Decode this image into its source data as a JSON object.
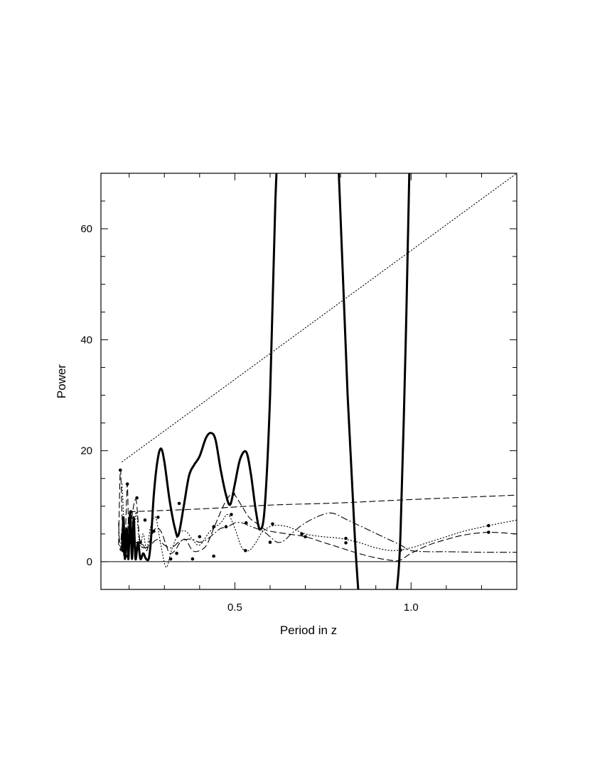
{
  "chart_data": {
    "type": "line",
    "title": "",
    "xlabel": "Period in z",
    "ylabel": "Power",
    "xlim": [
      0.12,
      1.3
    ],
    "ylim": [
      -5,
      70
    ],
    "x_ticks": [
      0.5,
      1.0
    ],
    "x_tick_labels": [
      "0.5",
      "1.0"
    ],
    "x_minor_ticks": [
      0.2,
      0.3,
      0.4,
      0.6,
      0.7,
      0.8,
      0.9,
      1.1,
      1.2
    ],
    "y_ticks": [
      0,
      20,
      40,
      60
    ],
    "y_tick_labels": [
      "0",
      "20",
      "40",
      "60"
    ],
    "y_minor_ticks": [
      -5,
      5,
      10,
      15,
      25,
      30,
      35,
      45,
      50,
      55,
      65,
      70
    ],
    "zero_line": true,
    "grid": false,
    "series": [
      {
        "style": "thick-solid",
        "points": [
          [
            0.18,
            2
          ],
          [
            0.184,
            8
          ],
          [
            0.188,
            0.5
          ],
          [
            0.193,
            6
          ],
          [
            0.198,
            0.5
          ],
          [
            0.203,
            9
          ],
          [
            0.208,
            0.5
          ],
          [
            0.213,
            8
          ],
          [
            0.218,
            0.5
          ],
          [
            0.225,
            3.5
          ],
          [
            0.232,
            0.5
          ],
          [
            0.24,
            1.5
          ],
          [
            0.248,
            0.5
          ],
          [
            0.256,
            0.6
          ],
          [
            0.262,
            4
          ],
          [
            0.27,
            12
          ],
          [
            0.28,
            18
          ],
          [
            0.29,
            20.4
          ],
          [
            0.3,
            18
          ],
          [
            0.315,
            11
          ],
          [
            0.33,
            6
          ],
          [
            0.34,
            4.8
          ],
          [
            0.355,
            10
          ],
          [
            0.37,
            15.5
          ],
          [
            0.385,
            17.5
          ],
          [
            0.4,
            19
          ],
          [
            0.418,
            22.3
          ],
          [
            0.432,
            23.2
          ],
          [
            0.445,
            22
          ],
          [
            0.46,
            16.5
          ],
          [
            0.475,
            12
          ],
          [
            0.487,
            10.3
          ],
          [
            0.5,
            14
          ],
          [
            0.515,
            18.5
          ],
          [
            0.532,
            19.8
          ],
          [
            0.545,
            16
          ],
          [
            0.56,
            9
          ],
          [
            0.572,
            5.8
          ],
          [
            0.585,
            10
          ],
          [
            0.6,
            30
          ],
          [
            0.615,
            65
          ],
          [
            0.63,
            85
          ]
        ]
      },
      {
        "style": "thick-solid",
        "points": [
          [
            0.78,
            85
          ],
          [
            0.795,
            70
          ],
          [
            0.82,
            30
          ],
          [
            0.84,
            5
          ],
          [
            0.85,
            -5
          ]
        ]
      },
      {
        "style": "thick-solid",
        "points": [
          [
            0.96,
            -5
          ],
          [
            0.97,
            5
          ],
          [
            0.985,
            40
          ],
          [
            0.995,
            70
          ],
          [
            1.005,
            85
          ]
        ]
      },
      {
        "style": "dotted",
        "points": [
          [
            0.18,
            18
          ],
          [
            1.3,
            70
          ]
        ]
      },
      {
        "style": "dotted",
        "points": [
          [
            0.18,
            14
          ],
          [
            0.19,
            3
          ],
          [
            0.2,
            8
          ],
          [
            0.21,
            2
          ],
          [
            0.22,
            9
          ],
          [
            0.23,
            3
          ],
          [
            0.24,
            5
          ],
          [
            0.25,
            2
          ],
          [
            0.26,
            6
          ],
          [
            0.275,
            8
          ],
          [
            0.29,
            3
          ],
          [
            0.305,
            -1
          ],
          [
            0.32,
            2
          ],
          [
            0.34,
            5
          ],
          [
            0.36,
            5.5
          ],
          [
            0.38,
            4
          ],
          [
            0.4,
            3
          ],
          [
            0.43,
            5.5
          ],
          [
            0.46,
            7
          ],
          [
            0.48,
            8.5
          ],
          [
            0.5,
            6
          ],
          [
            0.52,
            2.5
          ],
          [
            0.54,
            2
          ],
          [
            0.56,
            3.5
          ],
          [
            0.58,
            5.5
          ],
          [
            0.61,
            6.5
          ],
          [
            0.65,
            6.3
          ],
          [
            0.7,
            5
          ],
          [
            0.75,
            4.5
          ],
          [
            0.8,
            4.2
          ],
          [
            0.85,
            3.5
          ],
          [
            0.9,
            2.5
          ],
          [
            0.95,
            2
          ],
          [
            1.0,
            2.5
          ],
          [
            1.05,
            3.5
          ],
          [
            1.1,
            4.5
          ],
          [
            1.15,
            5.5
          ],
          [
            1.22,
            6.5
          ],
          [
            1.3,
            7.5
          ]
        ]
      },
      {
        "style": "dashed",
        "points": [
          [
            0.17,
            3
          ],
          [
            0.175,
            16.5
          ],
          [
            0.18,
            8
          ],
          [
            0.185,
            1
          ],
          [
            0.19,
            6
          ],
          [
            0.195,
            14
          ],
          [
            0.2,
            3
          ],
          [
            0.21,
            9
          ],
          [
            0.22,
            11
          ],
          [
            0.23,
            4
          ],
          [
            0.24,
            3
          ],
          [
            0.25,
            2
          ],
          [
            0.26,
            4
          ],
          [
            0.275,
            6
          ],
          [
            0.29,
            5.5
          ],
          [
            0.305,
            3
          ],
          [
            0.315,
            1.5
          ],
          [
            0.33,
            2
          ],
          [
            0.345,
            3.5
          ],
          [
            0.36,
            4
          ],
          [
            0.38,
            2
          ],
          [
            0.4,
            2
          ],
          [
            0.42,
            3
          ],
          [
            0.44,
            6
          ],
          [
            0.46,
            9
          ],
          [
            0.475,
            11
          ],
          [
            0.49,
            12.2
          ],
          [
            0.5,
            12
          ],
          [
            0.52,
            10
          ],
          [
            0.54,
            8
          ],
          [
            0.56,
            7
          ],
          [
            0.58,
            6
          ],
          [
            0.6,
            5.5
          ],
          [
            0.65,
            5
          ],
          [
            0.7,
            4.5
          ],
          [
            0.75,
            3.5
          ],
          [
            0.8,
            2.5
          ],
          [
            0.85,
            1.5
          ],
          [
            0.9,
            0.7
          ],
          [
            0.95,
            0.2
          ],
          [
            0.97,
            0.3
          ],
          [
            1.0,
            1.5
          ],
          [
            1.05,
            3
          ],
          [
            1.1,
            4
          ],
          [
            1.15,
            4.8
          ],
          [
            1.22,
            5.3
          ],
          [
            1.3,
            5
          ]
        ]
      },
      {
        "style": "dashed",
        "points": [
          [
            0.2,
            9
          ],
          [
            0.4,
            9.5
          ],
          [
            0.6,
            10.2
          ],
          [
            0.8,
            10.6
          ],
          [
            1.0,
            11.2
          ],
          [
            1.3,
            12
          ]
        ]
      },
      {
        "style": "dash-dot",
        "points": [
          [
            0.17,
            7
          ],
          [
            0.175,
            2
          ],
          [
            0.18,
            6
          ],
          [
            0.19,
            3
          ],
          [
            0.2,
            4
          ],
          [
            0.21,
            2
          ],
          [
            0.22,
            3.5
          ],
          [
            0.24,
            2.5
          ],
          [
            0.26,
            3
          ],
          [
            0.28,
            4
          ],
          [
            0.3,
            3
          ],
          [
            0.32,
            2.5
          ],
          [
            0.34,
            3.5
          ],
          [
            0.36,
            4
          ],
          [
            0.38,
            4
          ],
          [
            0.4,
            3.5
          ],
          [
            0.42,
            4
          ],
          [
            0.44,
            5
          ],
          [
            0.46,
            6
          ],
          [
            0.48,
            6.3
          ],
          [
            0.5,
            7
          ],
          [
            0.52,
            7
          ],
          [
            0.54,
            6.5
          ],
          [
            0.56,
            6
          ],
          [
            0.58,
            5.5
          ],
          [
            0.6,
            4.5
          ],
          [
            0.62,
            3.5
          ],
          [
            0.64,
            3.8
          ],
          [
            0.66,
            5
          ],
          [
            0.7,
            7
          ],
          [
            0.75,
            8.5
          ],
          [
            0.78,
            8.7
          ],
          [
            0.82,
            7.5
          ],
          [
            0.87,
            6
          ],
          [
            0.92,
            4.5
          ],
          [
            0.97,
            3
          ],
          [
            1.0,
            2
          ],
          [
            1.05,
            1.8
          ],
          [
            1.1,
            1.8
          ],
          [
            1.2,
            1.7
          ],
          [
            1.3,
            1.7
          ]
        ]
      }
    ],
    "markers": [
      [
        0.175,
        16.5
      ],
      [
        0.182,
        2
      ],
      [
        0.19,
        1
      ],
      [
        0.195,
        14
      ],
      [
        0.205,
        9
      ],
      [
        0.222,
        11.5
      ],
      [
        0.232,
        3.5
      ],
      [
        0.245,
        7.5
      ],
      [
        0.27,
        5.5
      ],
      [
        0.282,
        8
      ],
      [
        0.318,
        0.5
      ],
      [
        0.335,
        1.5
      ],
      [
        0.342,
        10.5
      ],
      [
        0.38,
        0.5
      ],
      [
        0.4,
        4.5
      ],
      [
        0.44,
        1
      ],
      [
        0.44,
        6.3
      ],
      [
        0.475,
        6.3
      ],
      [
        0.49,
        8.5
      ],
      [
        0.496,
        12.2
      ],
      [
        0.53,
        2
      ],
      [
        0.532,
        7
      ],
      [
        0.6,
        3.5
      ],
      [
        0.607,
        6.8
      ],
      [
        0.69,
        5
      ],
      [
        0.7,
        4.5
      ],
      [
        0.815,
        4.2
      ],
      [
        0.815,
        3.4
      ],
      [
        0.97,
        2.1
      ],
      [
        1.22,
        6.5
      ],
      [
        1.22,
        5.3
      ]
    ]
  }
}
